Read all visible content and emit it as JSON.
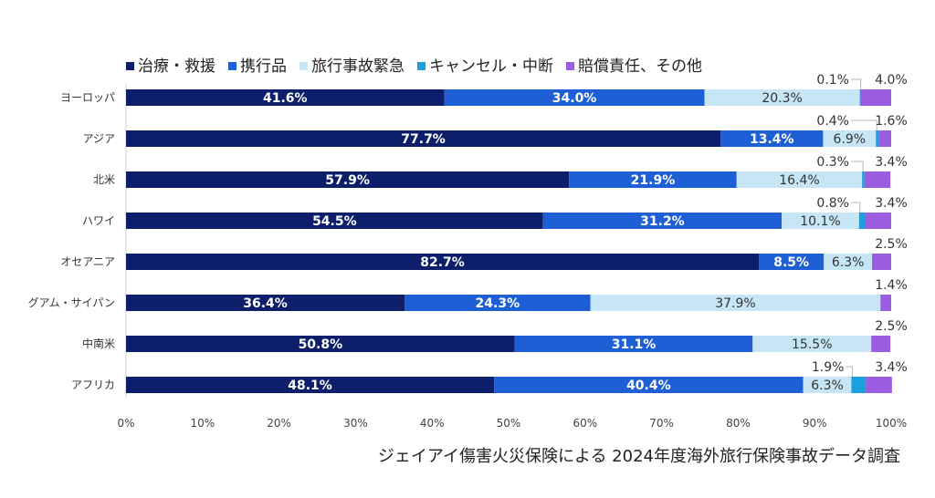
{
  "chart_data": {
    "type": "bar",
    "orientation": "horizontal",
    "stacked": true,
    "categories": [
      "ヨーロッパ",
      "アジア",
      "北米",
      "ハワイ",
      "オセアニア",
      "グアム・サイパン",
      "中南米",
      "アフリカ"
    ],
    "series": [
      {
        "name": "治療・救援",
        "color": "#0d1f6b",
        "values": [
          41.6,
          77.7,
          57.9,
          54.5,
          82.7,
          36.4,
          50.8,
          48.1
        ]
      },
      {
        "name": "携行品",
        "color": "#1f5fd6",
        "values": [
          34.0,
          13.4,
          21.9,
          31.2,
          8.5,
          24.3,
          31.1,
          40.4
        ]
      },
      {
        "name": "旅行事故緊急",
        "color": "#c6e6f6",
        "values": [
          20.3,
          6.9,
          16.4,
          10.1,
          6.3,
          37.9,
          15.5,
          6.3
        ]
      },
      {
        "name": "キャンセル・中断",
        "color": "#1aa0dc",
        "values": [
          0.1,
          0.4,
          0.3,
          0.8,
          0.0,
          0.0,
          0.0,
          1.9
        ]
      },
      {
        "name": "賠償責任、その他",
        "color": "#9a5ce0",
        "values": [
          4.0,
          1.6,
          3.4,
          3.4,
          2.5,
          1.4,
          2.5,
          3.4
        ]
      }
    ],
    "data_labels": [
      [
        "41.6%",
        "34.0%",
        "20.3%",
        "0.1%",
        "4.0%"
      ],
      [
        "77.7%",
        "13.4%",
        "6.9%",
        "0.4%",
        "1.6%"
      ],
      [
        "57.9%",
        "21.9%",
        "16.4%",
        "0.3%",
        "3.4%"
      ],
      [
        "54.5%",
        "31.2%",
        "10.1%",
        "0.8%",
        "3.4%"
      ],
      [
        "82.7%",
        "8.5%",
        "6.3%",
        "",
        "2.5%"
      ],
      [
        "36.4%",
        "24.3%",
        "37.9%",
        "",
        "1.4%"
      ],
      [
        "50.8%",
        "31.1%",
        "15.5%",
        "",
        "2.5%"
      ],
      [
        "48.1%",
        "40.4%",
        "6.3%",
        "1.9%",
        "3.4%"
      ]
    ],
    "x_ticks": [
      "0%",
      "10%",
      "20%",
      "30%",
      "40%",
      "50%",
      "60%",
      "70%",
      "80%",
      "90%",
      "100%"
    ],
    "xlim": [
      0,
      100
    ],
    "legend_position": "top",
    "title": "",
    "xlabel": "",
    "ylabel": ""
  },
  "caption": "ジェイアイ傷害火災保険による 2024年度海外旅行保険事故データ調査"
}
